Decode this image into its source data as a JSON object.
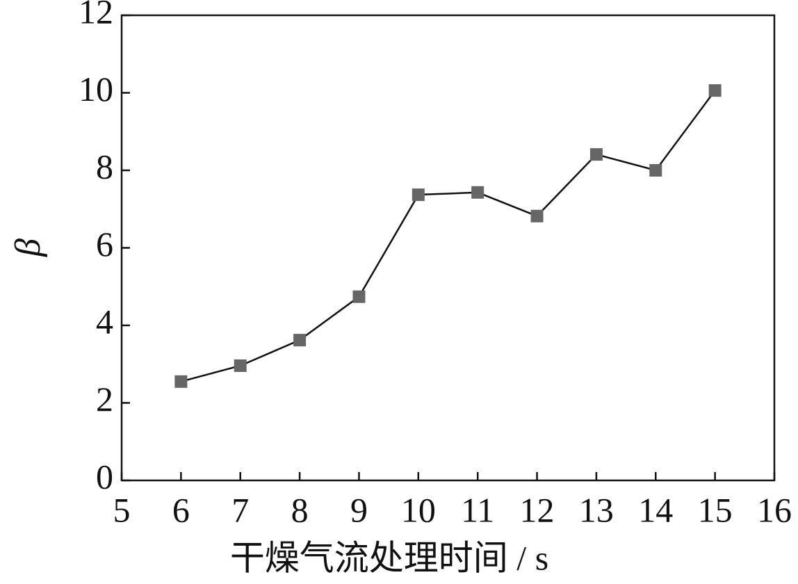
{
  "chart_data": {
    "type": "line",
    "x_label": "干燥气流处理时间 / s",
    "y_label": "β",
    "x": [
      6,
      7,
      8,
      9,
      10,
      11,
      12,
      13,
      14,
      15
    ],
    "series": [
      {
        "name": "β",
        "color": "#666666",
        "values": [
          2.55,
          2.96,
          3.62,
          4.74,
          7.37,
          7.43,
          6.82,
          8.41,
          8.0,
          10.06
        ]
      }
    ],
    "xlim": [
      5,
      16
    ],
    "xticks": [
      5,
      6,
      7,
      8,
      9,
      10,
      11,
      12,
      13,
      14,
      15,
      16
    ],
    "ylim": [
      0,
      12
    ],
    "yticks": [
      0,
      2,
      4,
      6,
      8,
      10,
      12
    ],
    "grid": false
  }
}
